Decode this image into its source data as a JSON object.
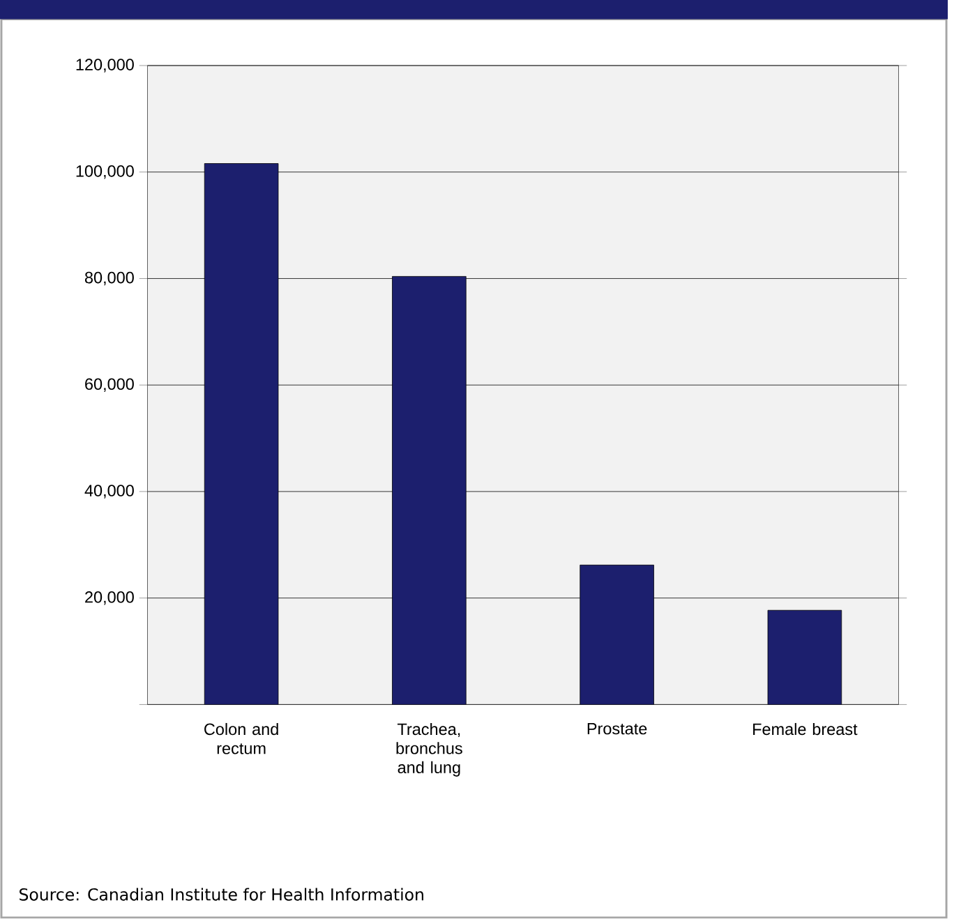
{
  "chart_data": {
    "type": "bar",
    "categories": [
      "Colon and rectum",
      "Trachea, bronchus and lung",
      "Prostate",
      "Female breast"
    ],
    "values": [
      101600,
      80400,
      26200,
      17700
    ],
    "color": "#1c1f6e",
    "ylim": [
      0,
      120000
    ],
    "yticks": [
      {
        "value": 0,
        "label": null
      },
      {
        "value": 20000,
        "label": "20,000"
      },
      {
        "value": 40000,
        "label": "40,000"
      },
      {
        "value": 60000,
        "label": "60,000"
      },
      {
        "value": 80000,
        "label": "80,000"
      },
      {
        "value": 100000,
        "label": "100,000"
      },
      {
        "value": 120000,
        "label": "120,000"
      }
    ],
    "grid": "y",
    "annotations": [
      "Source: Canadian Institute for Health Information"
    ]
  }
}
